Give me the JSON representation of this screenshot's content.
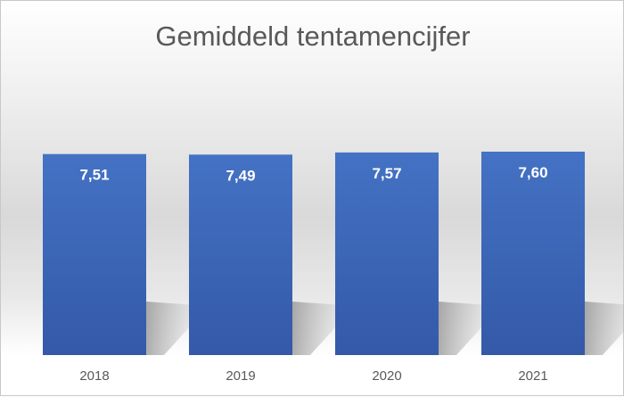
{
  "chart_data": {
    "type": "bar",
    "title": "Gemiddeld tentamencijfer",
    "categories": [
      "2018",
      "2019",
      "2020",
      "2021"
    ],
    "values": [
      7.51,
      7.49,
      7.57,
      7.6
    ],
    "data_labels": [
      "7,51",
      "7,49",
      "7,57",
      "7,60"
    ],
    "xlabel": "",
    "ylabel": "",
    "ylim": [
      0,
      9
    ],
    "grid": false,
    "legend": "none",
    "colors": {
      "bar_top": "#4472c4",
      "bar_bottom": "#3459a8",
      "label": "#ffffff",
      "tick": "#595959"
    }
  }
}
